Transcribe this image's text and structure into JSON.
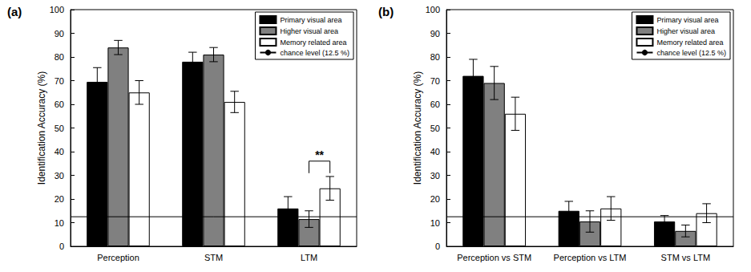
{
  "chart_data": [
    {
      "type": "bar",
      "title": "(a)",
      "y_label": "Identification Accuracy (%)",
      "categories": [
        "Perception",
        "STM",
        "LTM"
      ],
      "series": [
        {
          "name": "Primary visual area",
          "color": "#000000",
          "values": [
            69.5,
            78,
            16
          ],
          "errors": [
            6,
            4,
            5
          ]
        },
        {
          "name": "Higher visual area",
          "color": "#808080",
          "values": [
            84,
            81,
            11.5
          ],
          "errors": [
            3,
            3,
            3.5
          ]
        },
        {
          "name": "Memory related area",
          "color": "#ffffff",
          "values": [
            65,
            61,
            24.5
          ],
          "errors": [
            5,
            4.5,
            5
          ]
        },
        {
          "name": "chance level (12.5 %)",
          "type": "line",
          "color": "#000000",
          "values": [
            12.5,
            12.5,
            12.5
          ]
        }
      ],
      "ylim": [
        0,
        100
      ],
      "yticks": [
        0,
        10,
        20,
        30,
        40,
        50,
        60,
        70,
        80,
        90,
        100
      ],
      "legend": "upper right",
      "grid": false,
      "annotations": [
        {
          "text": "**",
          "category": "LTM",
          "series": [
            "Higher visual area",
            "Memory related area"
          ],
          "y": 36
        }
      ]
    },
    {
      "type": "bar",
      "title": "(b)",
      "y_label": "Identification Accuracy (%)",
      "categories": [
        "Perception vs STM",
        "Perception vs LTM",
        "STM vs LTM"
      ],
      "series": [
        {
          "name": "Primary visual area",
          "color": "#000000",
          "values": [
            72,
            15,
            10.5
          ],
          "errors": [
            7,
            4,
            2.5
          ]
        },
        {
          "name": "Higher visual area",
          "color": "#808080",
          "values": [
            69,
            10.5,
            6.5
          ],
          "errors": [
            7,
            4.5,
            2.5
          ]
        },
        {
          "name": "Memory related area",
          "color": "#ffffff",
          "values": [
            56,
            16,
            14
          ],
          "errors": [
            7,
            5,
            4
          ]
        },
        {
          "name": "chance level (12.5 %)",
          "type": "line",
          "color": "#000000",
          "values": [
            12.5,
            12.5,
            12.5
          ]
        }
      ],
      "ylim": [
        0,
        100
      ],
      "yticks": [
        0,
        10,
        20,
        30,
        40,
        50,
        60,
        70,
        80,
        90,
        100
      ],
      "legend": "upper right",
      "grid": false
    }
  ]
}
